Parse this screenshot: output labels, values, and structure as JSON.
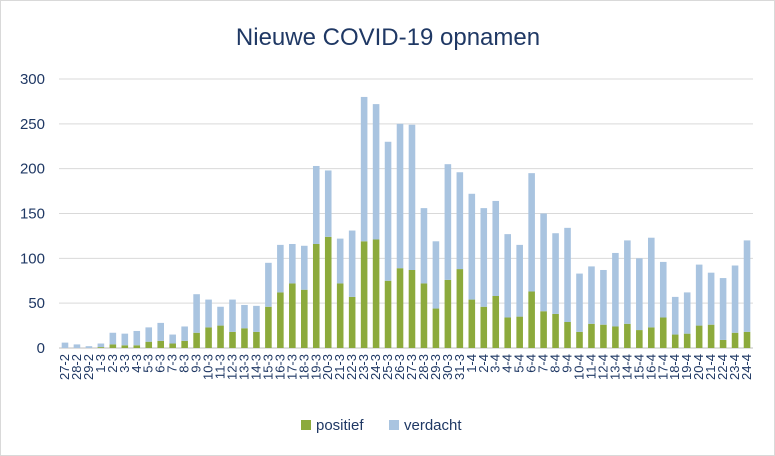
{
  "chart_data": {
    "type": "bar",
    "stacked": true,
    "title": "Nieuwe COVID-19 opnamen",
    "xlabel": "",
    "ylabel": "",
    "ylim": [
      0,
      300
    ],
    "yticks": [
      0,
      50,
      100,
      150,
      200,
      250,
      300
    ],
    "grid": true,
    "legend": "bottom",
    "categories": [
      "27-2",
      "28-2",
      "29-2",
      "1-3",
      "2-3",
      "3-3",
      "4-3",
      "5-3",
      "6-3",
      "7-3",
      "8-3",
      "9-3",
      "10-3",
      "11-3",
      "12-3",
      "13-3",
      "14-3",
      "15-3",
      "16-3",
      "17-3",
      "18-3",
      "19-3",
      "20-3",
      "21-3",
      "22-3",
      "23-3",
      "24-3",
      "25-3",
      "26-3",
      "27-3",
      "28-3",
      "29-3",
      "30-3",
      "31-3",
      "1-4",
      "2-4",
      "3-4",
      "4-4",
      "5-4",
      "6-4",
      "7-4",
      "8-4",
      "9-4",
      "10-4",
      "11-4",
      "12-4",
      "13-4",
      "14-4",
      "15-4",
      "16-4",
      "17-4",
      "18-4",
      "19-4",
      "20-4",
      "21-4",
      "22-4",
      "23-4",
      "24-4"
    ],
    "series": [
      {
        "name": "positief",
        "color": "#8caa3c",
        "values": [
          0,
          0,
          0,
          1,
          4,
          3,
          3,
          7,
          8,
          5,
          8,
          17,
          23,
          25,
          18,
          22,
          18,
          46,
          62,
          72,
          65,
          116,
          124,
          72,
          57,
          119,
          121,
          75,
          89,
          87,
          72,
          44,
          76,
          88,
          54,
          46,
          58,
          34,
          35,
          63,
          41,
          38,
          29,
          18,
          27,
          26,
          24,
          27,
          20,
          23,
          34,
          15,
          16,
          25,
          26,
          9,
          17,
          18
        ]
      },
      {
        "name": "verdacht",
        "color": "#a9c4e0",
        "values": [
          6,
          4,
          2,
          4,
          13,
          13,
          16,
          16,
          20,
          10,
          16,
          43,
          31,
          21,
          36,
          26,
          29,
          49,
          53,
          44,
          49,
          87,
          74,
          50,
          74,
          161,
          151,
          155,
          161,
          162,
          84,
          75,
          129,
          108,
          118,
          110,
          106,
          93,
          80,
          132,
          109,
          90,
          105,
          65,
          64,
          61,
          82,
          93,
          80,
          100,
          62,
          42,
          46,
          68,
          58,
          69,
          75,
          102
        ]
      }
    ]
  }
}
